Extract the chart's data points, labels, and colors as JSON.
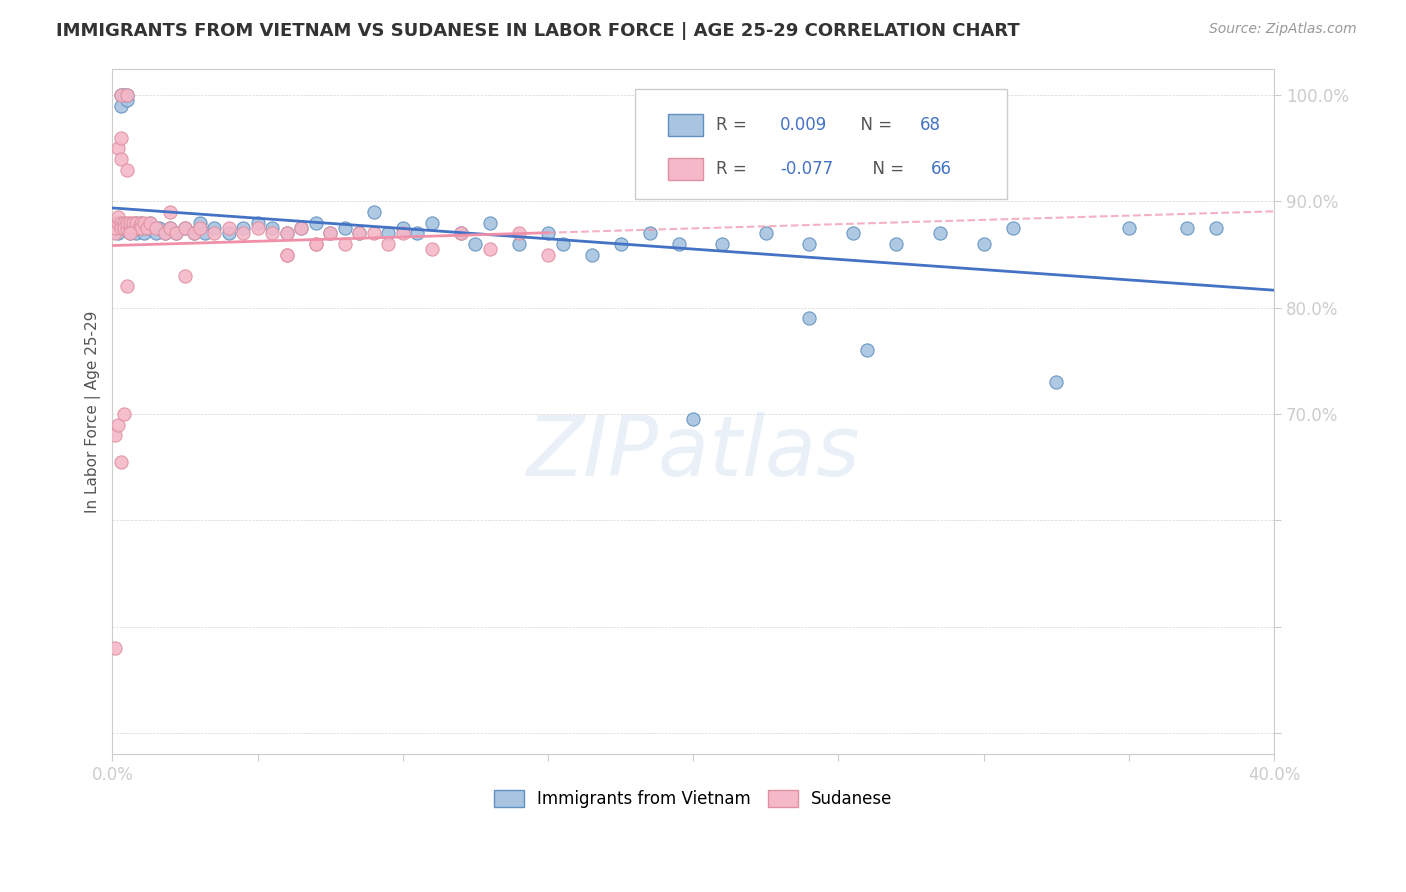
{
  "title": "IMMIGRANTS FROM VIETNAM VS SUDANESE IN LABOR FORCE | AGE 25-29 CORRELATION CHART",
  "source": "Source: ZipAtlas.com",
  "ylabel": "In Labor Force | Age 25-29",
  "xlim": [
    0.0,
    0.4
  ],
  "ylim": [
    0.38,
    1.025
  ],
  "xticks": [
    0.0,
    0.05,
    0.1,
    0.15,
    0.2,
    0.25,
    0.3,
    0.35,
    0.4
  ],
  "yticks": [
    0.4,
    0.5,
    0.6,
    0.7,
    0.8,
    0.9,
    1.0
  ],
  "vietnam_color": "#a8c4e0",
  "sudanese_color": "#f4b8c8",
  "vietnam_edge_color": "#6090c0",
  "sudanese_edge_color": "#e090a0",
  "vietnam_line_color": "#4472c4",
  "sudanese_line_color": "#f090a8",
  "R_vietnam": "0.009",
  "N_vietnam": "68",
  "R_sudanese": "-0.077",
  "N_sudanese": "66",
  "watermark": "ZIPatlas",
  "vietnam_x": [
    0.001,
    0.002,
    0.002,
    0.003,
    0.003,
    0.004,
    0.005,
    0.005,
    0.006,
    0.007,
    0.008,
    0.008,
    0.009,
    0.01,
    0.01,
    0.011,
    0.012,
    0.013,
    0.015,
    0.016,
    0.018,
    0.02,
    0.022,
    0.025,
    0.028,
    0.03,
    0.032,
    0.035,
    0.04,
    0.045,
    0.05,
    0.055,
    0.06,
    0.065,
    0.07,
    0.075,
    0.08,
    0.085,
    0.09,
    0.095,
    0.1,
    0.105,
    0.11,
    0.12,
    0.125,
    0.13,
    0.14,
    0.15,
    0.155,
    0.165,
    0.175,
    0.185,
    0.195,
    0.21,
    0.225,
    0.24,
    0.255,
    0.27,
    0.285,
    0.3,
    0.2,
    0.24,
    0.26,
    0.31,
    0.35,
    0.37,
    0.325,
    0.38
  ],
  "vietnam_y": [
    0.88,
    0.875,
    0.87,
    1.0,
    0.99,
    1.0,
    0.995,
    1.0,
    0.87,
    0.875,
    0.88,
    0.87,
    0.875,
    0.88,
    0.875,
    0.87,
    0.875,
    0.88,
    0.87,
    0.875,
    0.87,
    0.875,
    0.87,
    0.875,
    0.87,
    0.88,
    0.87,
    0.875,
    0.87,
    0.875,
    0.88,
    0.875,
    0.87,
    0.875,
    0.88,
    0.87,
    0.875,
    0.87,
    0.89,
    0.87,
    0.875,
    0.87,
    0.88,
    0.87,
    0.86,
    0.88,
    0.86,
    0.87,
    0.86,
    0.85,
    0.86,
    0.87,
    0.86,
    0.86,
    0.87,
    0.86,
    0.87,
    0.86,
    0.87,
    0.86,
    0.695,
    0.79,
    0.76,
    0.875,
    0.875,
    0.875,
    0.73,
    0.875
  ],
  "sudanese_x": [
    0.001,
    0.001,
    0.002,
    0.002,
    0.002,
    0.003,
    0.003,
    0.003,
    0.004,
    0.004,
    0.005,
    0.005,
    0.005,
    0.006,
    0.006,
    0.007,
    0.007,
    0.008,
    0.008,
    0.009,
    0.01,
    0.01,
    0.011,
    0.012,
    0.013,
    0.015,
    0.018,
    0.02,
    0.022,
    0.025,
    0.028,
    0.03,
    0.035,
    0.04,
    0.045,
    0.05,
    0.055,
    0.06,
    0.065,
    0.07,
    0.075,
    0.08,
    0.085,
    0.09,
    0.095,
    0.1,
    0.11,
    0.12,
    0.13,
    0.14,
    0.15,
    0.003,
    0.06,
    0.07,
    0.025,
    0.001,
    0.002,
    0.003,
    0.004,
    0.001,
    0.005,
    0.006,
    0.02,
    0.06,
    0.003,
    0.005
  ],
  "sudanese_y": [
    0.87,
    0.875,
    0.88,
    0.885,
    0.95,
    0.88,
    0.875,
    0.94,
    0.88,
    0.875,
    0.875,
    0.88,
    0.93,
    0.875,
    0.88,
    0.875,
    0.88,
    0.875,
    0.88,
    0.875,
    0.88,
    0.875,
    0.88,
    0.875,
    0.88,
    0.875,
    0.87,
    0.875,
    0.87,
    0.875,
    0.87,
    0.875,
    0.87,
    0.875,
    0.87,
    0.875,
    0.87,
    0.87,
    0.875,
    0.86,
    0.87,
    0.86,
    0.87,
    0.87,
    0.86,
    0.87,
    0.855,
    0.87,
    0.855,
    0.87,
    0.85,
    0.96,
    0.85,
    0.86,
    0.83,
    0.68,
    0.69,
    0.655,
    0.7,
    0.48,
    0.82,
    0.87,
    0.89,
    0.85,
    1.0,
    1.0
  ]
}
